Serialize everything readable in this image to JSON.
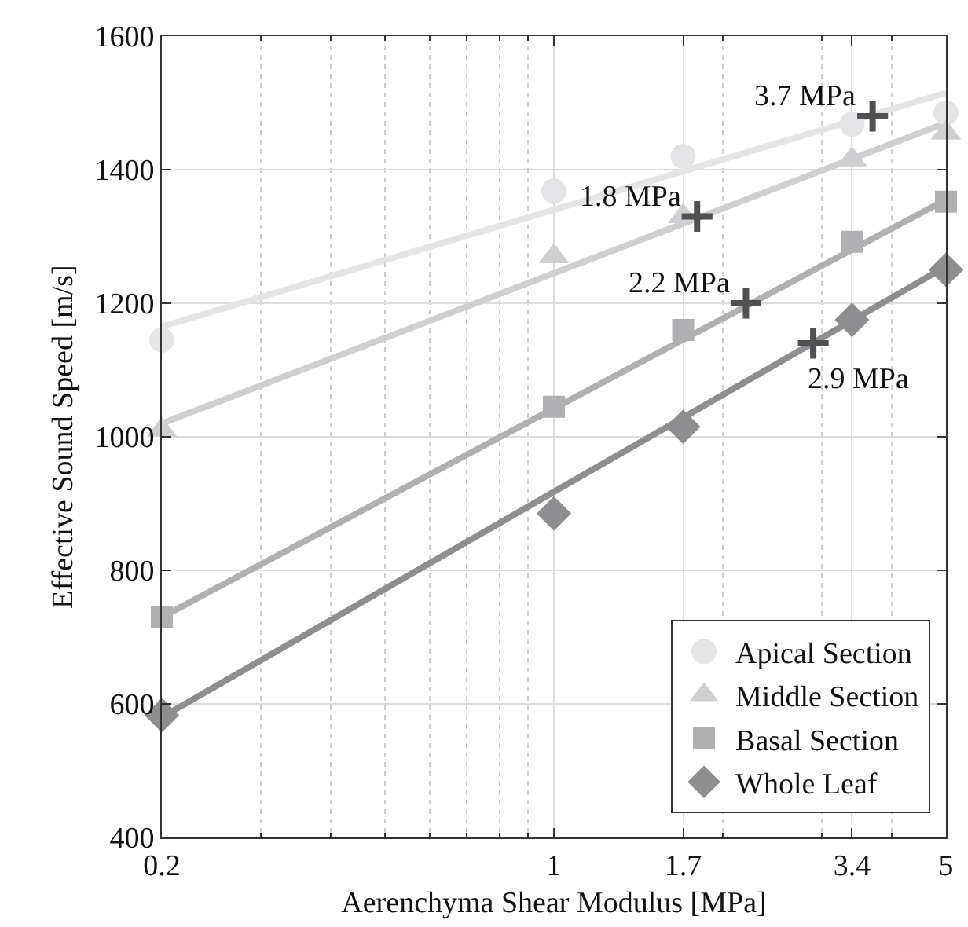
{
  "chart_data": {
    "type": "scatter",
    "xlabel": "Aerenchyma Shear Modulus [MPa]",
    "ylabel": "Effective Sound Speed [m/s]",
    "x": [
      0.2,
      1,
      1.7,
      3.4,
      5
    ],
    "series": [
      {
        "name": "Apical Section",
        "color": "#e4e4e6",
        "marker": "circle",
        "values": [
          1145,
          1368,
          1420,
          1468,
          1485
        ]
      },
      {
        "name": "Middle Section",
        "color": "#cfcfd1",
        "marker": "triangle",
        "values": [
          1010,
          1270,
          1330,
          1415,
          1455
        ]
      },
      {
        "name": "Basal Section",
        "color": "#b0b0b3",
        "marker": "square",
        "values": [
          730,
          1045,
          1160,
          1292,
          1352
        ]
      },
      {
        "name": "Whole Leaf",
        "color": "#8e8e91",
        "marker": "diamond",
        "values": [
          583,
          885,
          1015,
          1175,
          1250
        ]
      },
      {
        "type": "line",
        "color": "#e4e4e6",
        "marker": "none",
        "x": [
          0.2,
          5
        ],
        "values": [
          1165,
          1515
        ]
      },
      {
        "type": "line",
        "color": "#cfcfd1",
        "marker": "none",
        "x": [
          0.2,
          5
        ],
        "values": [
          1020,
          1470
        ]
      },
      {
        "type": "line",
        "color": "#b0b0b3",
        "marker": "none",
        "x": [
          0.2,
          5
        ],
        "values": [
          730,
          1355
        ]
      },
      {
        "type": "line",
        "color": "#8e8e91",
        "marker": "none",
        "x": [
          0.2,
          5
        ],
        "values": [
          580,
          1255
        ]
      },
      {
        "color": "#505053",
        "marker": "cross",
        "x": [
          3.7,
          1.8,
          2.2,
          2.9
        ],
        "values": [
          1480,
          1330,
          1200,
          1140
        ]
      }
    ],
    "annotations": [
      {
        "text": "3.7 MPa",
        "x": 3.7,
        "y": 1480
      },
      {
        "text": "1.8 MPa",
        "x": 1.8,
        "y": 1330
      },
      {
        "text": "2.2 MPa",
        "x": 2.2,
        "y": 1200
      },
      {
        "text": "2.9 MPa",
        "x": 2.9,
        "y": 1140
      }
    ],
    "log": "x",
    "xlim": [
      0.2,
      5
    ],
    "xticks": [
      0.2,
      1,
      1.7,
      3.4,
      5
    ],
    "ylim": [
      400,
      1600
    ],
    "yticks": [
      400,
      600,
      800,
      1000,
      1200,
      1400,
      1600
    ],
    "grid": true,
    "legend": "bottom right"
  }
}
